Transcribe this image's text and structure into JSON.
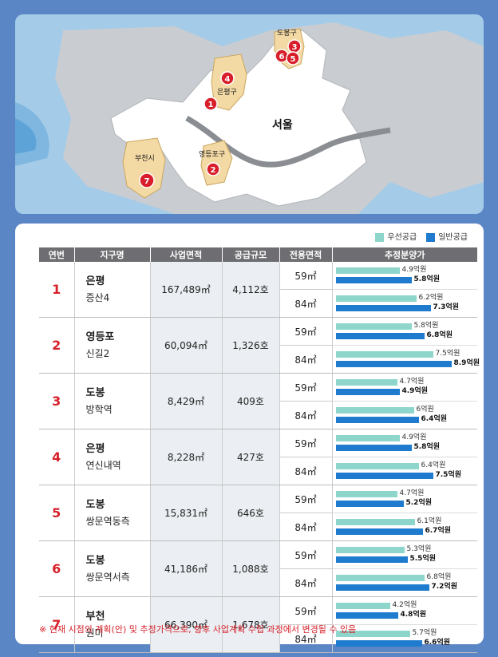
{
  "map": {
    "city": "서울",
    "districts": [
      "도봉구",
      "은평구",
      "영등포구",
      "부천시"
    ],
    "markers": [
      "1",
      "2",
      "3",
      "4",
      "5",
      "6",
      "7"
    ]
  },
  "legend": {
    "priority": "우선공급",
    "general": "일반공급",
    "priority_color": "#8ed6cc",
    "general_color": "#1e7bcd"
  },
  "table": {
    "headers": [
      "연번",
      "지구명",
      "사업면적",
      "공급규모",
      "전용면적",
      "추정분양가"
    ],
    "rows": [
      {
        "no": "1",
        "district": "은평",
        "name": "증산4",
        "area": "167,489㎡",
        "scale": "4,112호",
        "units": [
          {
            "size": "59㎡",
            "priority": "4.9억원",
            "general": "5.8억원",
            "p": 4.9,
            "g": 5.8
          },
          {
            "size": "84㎡",
            "priority": "6.2억원",
            "general": "7.3억원",
            "p": 6.2,
            "g": 7.3
          }
        ]
      },
      {
        "no": "2",
        "district": "영등포",
        "name": "신길2",
        "area": "60,094㎡",
        "scale": "1,326호",
        "units": [
          {
            "size": "59㎡",
            "priority": "5.8억원",
            "general": "6.8억원",
            "p": 5.8,
            "g": 6.8
          },
          {
            "size": "84㎡",
            "priority": "7.5억원",
            "general": "8.9억원",
            "p": 7.5,
            "g": 8.9
          }
        ]
      },
      {
        "no": "3",
        "district": "도봉",
        "name": "방학역",
        "area": "8,429㎡",
        "scale": "409호",
        "units": [
          {
            "size": "59㎡",
            "priority": "4.7억원",
            "general": "4.9억원",
            "p": 4.7,
            "g": 4.9
          },
          {
            "size": "84㎡",
            "priority": "6억원",
            "general": "6.4억원",
            "p": 6.0,
            "g": 6.4
          }
        ]
      },
      {
        "no": "4",
        "district": "은평",
        "name": "연신내역",
        "area": "8,228㎡",
        "scale": "427호",
        "units": [
          {
            "size": "59㎡",
            "priority": "4.9억원",
            "general": "5.8억원",
            "p": 4.9,
            "g": 5.8
          },
          {
            "size": "84㎡",
            "priority": "6.4억원",
            "general": "7.5억원",
            "p": 6.4,
            "g": 7.5
          }
        ]
      },
      {
        "no": "5",
        "district": "도봉",
        "name": "쌍문역동측",
        "area": "15,831㎡",
        "scale": "646호",
        "units": [
          {
            "size": "59㎡",
            "priority": "4.7억원",
            "general": "5.2억원",
            "p": 4.7,
            "g": 5.2
          },
          {
            "size": "84㎡",
            "priority": "6.1억원",
            "general": "6.7억원",
            "p": 6.1,
            "g": 6.7
          }
        ]
      },
      {
        "no": "6",
        "district": "도봉",
        "name": "쌍문역서측",
        "area": "41,186㎡",
        "scale": "1,088호",
        "units": [
          {
            "size": "59㎡",
            "priority": "5.3억원",
            "general": "5.5억원",
            "p": 5.3,
            "g": 5.5
          },
          {
            "size": "84㎡",
            "priority": "6.8억원",
            "general": "7.2억원",
            "p": 6.8,
            "g": 7.2
          }
        ]
      },
      {
        "no": "7",
        "district": "부천",
        "name": "원미",
        "area": "66,390㎡",
        "scale": "1,678호",
        "units": [
          {
            "size": "59㎡",
            "priority": "4.2억원",
            "general": "4.8억원",
            "p": 4.2,
            "g": 4.8
          },
          {
            "size": "84㎡",
            "priority": "5.7억원",
            "general": "6.6억원",
            "p": 5.7,
            "g": 6.6
          }
        ]
      }
    ]
  },
  "note": "※ 현재 시점의 계획(안) 및 추정가격으로, 향후 사업계획 수립 과정에서 변경될 수 있음"
}
